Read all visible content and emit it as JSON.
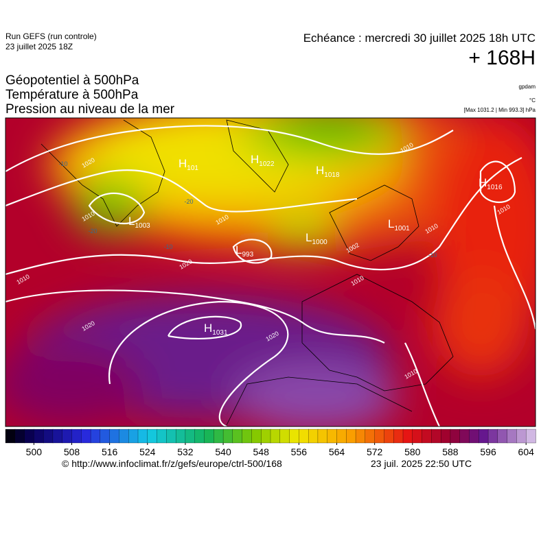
{
  "header": {
    "run": "Run GEFS (run controle)",
    "run_date": "23 juillet 2025 18Z",
    "echeance": "Echéance : mercredi 30 juillet 2025 18h UTC",
    "lead": "+ 168H",
    "titles": [
      "Géopotentiel à 500hPa",
      "Température à 500hPa",
      "Pression au niveau de la mer"
    ],
    "unit_geo": "gpdam",
    "unit_temp": "°C",
    "pressure_range": "[Max 1031.2 | Min 993.3] hPa"
  },
  "map": {
    "centers": [
      {
        "letter": "H",
        "value": 1031
      },
      {
        "letter": "H",
        "value": 1022
      },
      {
        "letter": "H",
        "value": 101
      },
      {
        "letter": "H",
        "value": 1018
      },
      {
        "letter": "H",
        "value": 1016
      },
      {
        "letter": "L",
        "value": 1003
      },
      {
        "letter": "L",
        "value": 993
      },
      {
        "letter": "L",
        "value": 1000
      },
      {
        "letter": "L",
        "value": 1001
      }
    ],
    "isobar_labels": [
      "1020",
      "1010",
      "1020",
      "1010",
      "1020",
      "1020",
      "1010",
      "1010",
      "1010",
      "1010",
      "1010",
      "1010",
      "1002"
    ],
    "temp_labels": [
      "-10",
      "-20",
      "-20",
      "-10",
      "-10"
    ]
  },
  "colorbar": {
    "lim": [
      494,
      606
    ],
    "ticks": [
      500,
      508,
      516,
      524,
      532,
      540,
      548,
      556,
      564,
      572,
      580,
      588,
      596,
      604
    ]
  },
  "footer": {
    "source": "© http://www.infoclimat.fr/z/gefs/europe/ctrl-500/168",
    "generated": "23 juil. 2025 22:50 UTC"
  }
}
